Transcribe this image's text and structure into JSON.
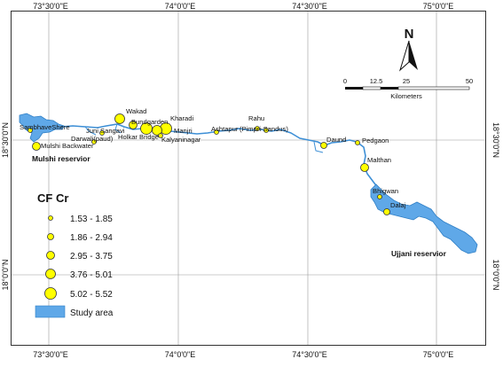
{
  "colors": {
    "river": "#3d8fd6",
    "study_area_fill": "#5fa8e8",
    "site_fill": "#ffff00",
    "site_stroke": "#333333",
    "frame": "#333333",
    "graticule": "#9a9a9a"
  },
  "graticule": {
    "longitude_labels": [
      "73°30'0\"E",
      "74°0'0\"E",
      "74°30'0\"E",
      "75°0'0\"E"
    ],
    "latitude_labels": [
      "18°30'0\"N",
      "18°0'0\"N"
    ]
  },
  "north_arrow": {
    "letter": "N"
  },
  "scale_bar": {
    "ticks": [
      "0",
      "12.5",
      "25",
      "50"
    ],
    "unit": "Kilometers"
  },
  "sites": [
    {
      "name": "Mulshi Backwater",
      "class": 2
    },
    {
      "name": "SambhaveShere",
      "class": 0
    },
    {
      "name": "Darwali(paud)",
      "class": 0
    },
    {
      "name": "Juni Sangavi",
      "class": 0
    },
    {
      "name": "Wakad",
      "class": 3
    },
    {
      "name": "Bundgarden",
      "class": 2
    },
    {
      "name": "Holkar Bridge",
      "class": 4
    },
    {
      "name": "Kharadi",
      "class": 4
    },
    {
      "name": "Manjri",
      "class": 3
    },
    {
      "name": "Kalyaninagar",
      "class": 0
    },
    {
      "name": "Ashtapur",
      "class": 0
    },
    {
      "name": "Rahu",
      "class": 0
    },
    {
      "name": "(Pimpri-Sandus)",
      "class": 0
    },
    {
      "name": "Daund",
      "class": 1
    },
    {
      "name": "Pedgaon",
      "class": 0
    },
    {
      "name": "Malthan",
      "class": 2
    },
    {
      "name": "Bhigwan",
      "class": 0
    },
    {
      "name": "Dalaj",
      "class": 1
    }
  ],
  "reservoirs": [
    "Mulshi reservior",
    "Ujjani reservior"
  ],
  "legend": {
    "title": "CF Cr",
    "classes": [
      {
        "label": "1.53 - 1.85"
      },
      {
        "label": "1.86 - 2.94"
      },
      {
        "label": "2.95 - 3.75"
      },
      {
        "label": "3.76 - 5.01"
      },
      {
        "label": "5.02 - 5.52"
      }
    ],
    "study_area_label": "Study area"
  }
}
